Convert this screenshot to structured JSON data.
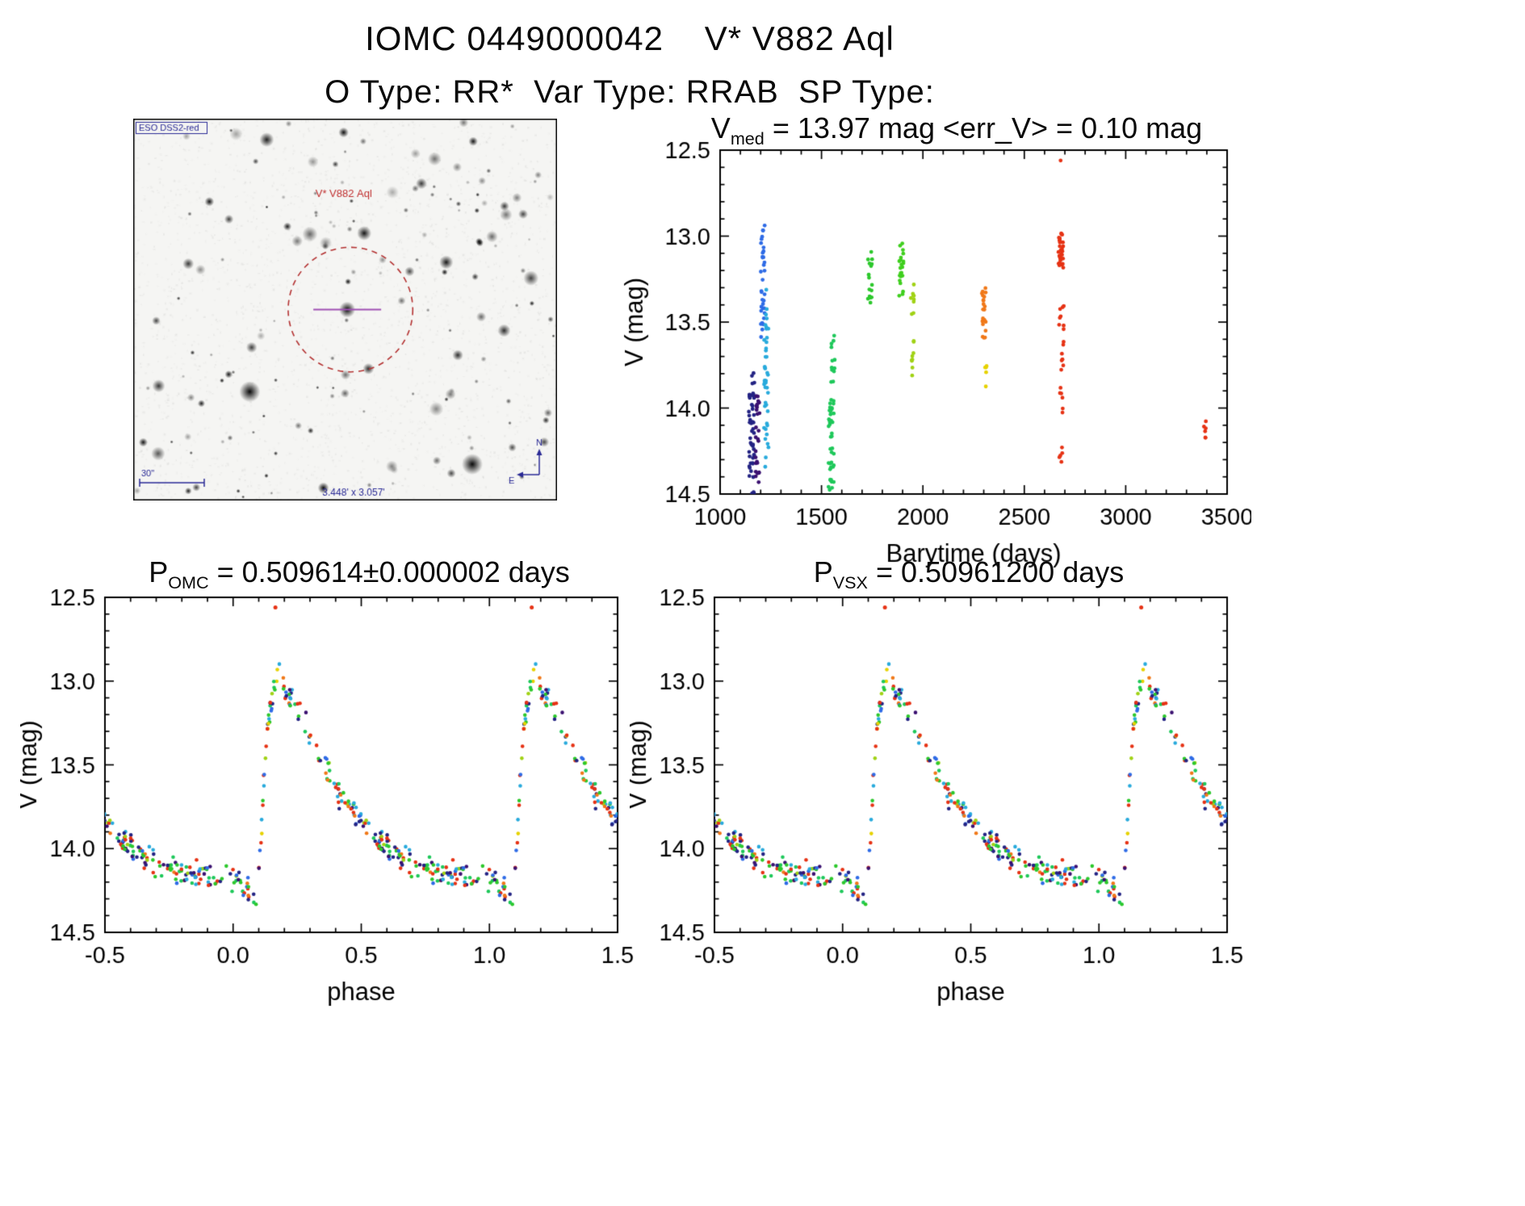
{
  "header": {
    "title": "IOMC 0449000042    V* V882 Aql",
    "subtitle": "O Type: RR*  Var Type: RRAB  SP Type:"
  },
  "finder": {
    "survey_label": "ESO DSS2-red",
    "star_label": "V* V882 Aql",
    "scale_label": "30\"",
    "fov_label": "3.448' x 3.057'",
    "compass_n": "N",
    "compass_e": "E",
    "circle_color": "#b43232",
    "annotation_color": "#2a2a96",
    "star_label_color": "#c03030"
  },
  "point_colors": [
    {
      "c": "#232383",
      "w": 13
    },
    {
      "c": "#3a1070",
      "w": 5
    },
    {
      "c": "#2e6be6",
      "w": 11
    },
    {
      "c": "#28aadc",
      "w": 12
    },
    {
      "c": "#1ec85a",
      "w": 9
    },
    {
      "c": "#2cc82c",
      "w": 17
    },
    {
      "c": "#a0d214",
      "w": 6
    },
    {
      "c": "#e6d200",
      "w": 3
    },
    {
      "c": "#f07818",
      "w": 6
    },
    {
      "c": "#e63214",
      "w": 15
    }
  ],
  "chart_data": [
    {
      "type": "scatter",
      "title_prefix": "V",
      "title_sub": "med",
      "title_rest": " = 13.97 mag <err_V> = 0.10 mag",
      "median_V_mag": 13.97,
      "mean_err_V_mag": 0.1,
      "xlabel": "Barytime (days)",
      "ylabel": "V (mag)",
      "xlim": [
        1000,
        3500
      ],
      "ylim_mag": [
        12.5,
        14.5
      ],
      "y_axis_inverted_magnitudes": true,
      "xticks": [
        1000,
        1500,
        2000,
        2500,
        3000,
        3500
      ],
      "yticks": [
        12.5,
        13.0,
        13.5,
        14.0,
        14.5
      ],
      "xtick_format": "int",
      "seed": 4242,
      "clusters": [
        {
          "t": 1155,
          "dt": 14,
          "n": 48,
          "mag_lo": 13.78,
          "mag_hi": 14.5,
          "color": "#232383"
        },
        {
          "t": 1185,
          "dt": 10,
          "n": 26,
          "mag_lo": 13.9,
          "mag_hi": 14.45,
          "color": "#3a1070"
        },
        {
          "t": 1210,
          "dt": 10,
          "n": 34,
          "mag_lo": 12.93,
          "mag_hi": 13.65,
          "color": "#2e6be6"
        },
        {
          "t": 1228,
          "dt": 12,
          "n": 44,
          "mag_lo": 13.3,
          "mag_hi": 14.35,
          "color": "#28aadc"
        },
        {
          "t": 1548,
          "dt": 14,
          "n": 40,
          "mag_lo": 13.95,
          "mag_hi": 14.5,
          "color": "#1ec85a"
        },
        {
          "t": 1558,
          "dt": 10,
          "n": 12,
          "mag_lo": 13.55,
          "mag_hi": 13.85,
          "color": "#1ec85a"
        },
        {
          "t": 1738,
          "dt": 12,
          "n": 16,
          "mag_lo": 13.08,
          "mag_hi": 13.42,
          "color": "#2cc82c"
        },
        {
          "t": 1895,
          "dt": 12,
          "n": 22,
          "mag_lo": 13.03,
          "mag_hi": 13.35,
          "color": "#3fcf1e"
        },
        {
          "t": 1948,
          "dt": 8,
          "n": 9,
          "mag_lo": 13.28,
          "mag_hi": 13.46,
          "color": "#a0d214"
        },
        {
          "t": 1952,
          "dt": 8,
          "n": 9,
          "mag_lo": 13.6,
          "mag_hi": 13.85,
          "color": "#a0d214"
        },
        {
          "t": 2300,
          "dt": 10,
          "n": 22,
          "mag_lo": 13.28,
          "mag_hi": 13.62,
          "color": "#f07818"
        },
        {
          "t": 2312,
          "dt": 6,
          "n": 5,
          "mag_lo": 13.75,
          "mag_hi": 13.95,
          "color": "#e6d200"
        },
        {
          "t": 2680,
          "dt": 12,
          "n": 34,
          "mag_lo": 12.97,
          "mag_hi": 13.2,
          "color": "#e63214"
        },
        {
          "t": 2683,
          "dt": 12,
          "n": 26,
          "mag_lo": 13.4,
          "mag_hi": 14.32,
          "color": "#e63214"
        },
        {
          "t": 3392,
          "dt": 6,
          "n": 6,
          "mag_lo": 14.02,
          "mag_hi": 14.26,
          "color": "#e63214"
        }
      ],
      "outliers": [
        {
          "t": 2679,
          "mag": 12.56,
          "color": "#e63214"
        }
      ]
    },
    {
      "type": "scatter",
      "title_prefix": "P",
      "title_sub": "OMC",
      "title_rest": " = 0.509614±0.000002 days",
      "period_days": 0.509614,
      "period_err_days": 2e-06,
      "xlabel": "phase",
      "ylabel": "V (mag)",
      "xlim": [
        -0.5,
        1.5
      ],
      "ylim_mag": [
        12.5,
        14.5
      ],
      "y_axis_inverted_magnitudes": true,
      "xticks": [
        -0.5,
        0.0,
        0.5,
        1.0,
        1.5
      ],
      "yticks": [
        12.5,
        13.0,
        13.5,
        14.0,
        14.5
      ],
      "xtick_format": "1dp",
      "seed": 13579,
      "n_points": 250,
      "mag_noise": 0.085,
      "phase_noise": 0.006,
      "template": [
        [
          0.0,
          14.17
        ],
        [
          0.03,
          14.2
        ],
        [
          0.05,
          14.24
        ],
        [
          0.07,
          14.3
        ],
        [
          0.085,
          14.36
        ],
        [
          0.095,
          14.28
        ],
        [
          0.105,
          14.02
        ],
        [
          0.115,
          13.72
        ],
        [
          0.125,
          13.45
        ],
        [
          0.135,
          13.27
        ],
        [
          0.15,
          13.1
        ],
        [
          0.165,
          13.02
        ],
        [
          0.18,
          13.0
        ],
        [
          0.2,
          13.05
        ],
        [
          0.22,
          13.11
        ],
        [
          0.25,
          13.19
        ],
        [
          0.28,
          13.28
        ],
        [
          0.31,
          13.36
        ],
        [
          0.34,
          13.45
        ],
        [
          0.37,
          13.53
        ],
        [
          0.4,
          13.61
        ],
        [
          0.43,
          13.68
        ],
        [
          0.46,
          13.75
        ],
        [
          0.5,
          13.83
        ],
        [
          0.54,
          13.9
        ],
        [
          0.58,
          13.96
        ],
        [
          0.62,
          14.01
        ],
        [
          0.66,
          14.05
        ],
        [
          0.7,
          14.08
        ],
        [
          0.74,
          14.1
        ],
        [
          0.78,
          14.12
        ],
        [
          0.82,
          14.13
        ],
        [
          0.86,
          14.14
        ],
        [
          0.9,
          14.15
        ],
        [
          0.94,
          14.16
        ],
        [
          1.0,
          14.17
        ]
      ],
      "outliers": [
        {
          "phase": 0.165,
          "mag": 12.56,
          "color": "#e63214"
        }
      ]
    },
    {
      "type": "scatter",
      "title_prefix": "P",
      "title_sub": "VSX",
      "title_rest": " = 0.50961200 days",
      "period_days": 0.509612,
      "xlabel": "phase",
      "ylabel": "V (mag)",
      "xlim": [
        -0.5,
        1.5
      ],
      "ylim_mag": [
        12.5,
        14.5
      ],
      "y_axis_inverted_magnitudes": true,
      "xticks": [
        -0.5,
        0.0,
        0.5,
        1.0,
        1.5
      ],
      "yticks": [
        12.5,
        13.0,
        13.5,
        14.0,
        14.5
      ],
      "xtick_format": "1dp",
      "seed": 13579,
      "n_points": 250,
      "mag_noise": 0.085,
      "phase_noise": 0.006,
      "template": [
        [
          0.0,
          14.17
        ],
        [
          0.03,
          14.2
        ],
        [
          0.05,
          14.24
        ],
        [
          0.07,
          14.3
        ],
        [
          0.085,
          14.36
        ],
        [
          0.095,
          14.28
        ],
        [
          0.105,
          14.02
        ],
        [
          0.115,
          13.72
        ],
        [
          0.125,
          13.45
        ],
        [
          0.135,
          13.27
        ],
        [
          0.15,
          13.1
        ],
        [
          0.165,
          13.02
        ],
        [
          0.18,
          13.0
        ],
        [
          0.2,
          13.05
        ],
        [
          0.22,
          13.11
        ],
        [
          0.25,
          13.19
        ],
        [
          0.28,
          13.28
        ],
        [
          0.31,
          13.36
        ],
        [
          0.34,
          13.45
        ],
        [
          0.37,
          13.53
        ],
        [
          0.4,
          13.61
        ],
        [
          0.43,
          13.68
        ],
        [
          0.46,
          13.75
        ],
        [
          0.5,
          13.83
        ],
        [
          0.54,
          13.9
        ],
        [
          0.58,
          13.96
        ],
        [
          0.62,
          14.01
        ],
        [
          0.66,
          14.05
        ],
        [
          0.7,
          14.08
        ],
        [
          0.74,
          14.1
        ],
        [
          0.78,
          14.12
        ],
        [
          0.82,
          14.13
        ],
        [
          0.86,
          14.14
        ],
        [
          0.9,
          14.15
        ],
        [
          0.94,
          14.16
        ],
        [
          1.0,
          14.17
        ]
      ],
      "outliers": [
        {
          "phase": 0.165,
          "mag": 12.56,
          "color": "#e63214"
        }
      ]
    }
  ]
}
